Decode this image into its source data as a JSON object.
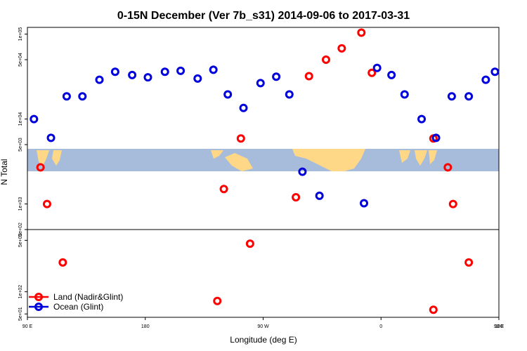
{
  "chart_data": {
    "type": "scatter",
    "title": "0-15N December (Ver 7b_s31)   2014-09-06 to 2017-03-31",
    "xlabel": "Longitude (deg E)",
    "ylabel": "N Total",
    "x_ticks": [
      "90 E",
      "180",
      "90 W",
      "0",
      "90 E",
      "180"
    ],
    "xlim": [
      90,
      450
    ],
    "y_scale": "log",
    "upper_panel": {
      "ylim": [
        500,
        120000
      ],
      "y_ticks": [
        "5e+02",
        "1e+03",
        "5e+03",
        "1e+04",
        "5e+04",
        "1e+05"
      ],
      "background_band": "world map (landmass strip, 0-15N)"
    },
    "lower_panel": {
      "ylim": [
        45,
        700
      ],
      "y_ticks": [
        "5e+01",
        "1e+02",
        "5e+02"
      ]
    },
    "series": [
      {
        "name": "Land (Nadir&Glint)",
        "color": "#ff0000",
        "points": [
          {
            "panel": "upper",
            "x": 100,
            "y": 2700
          },
          {
            "panel": "upper",
            "x": 105,
            "y": 1000
          },
          {
            "panel": "upper",
            "x": 117,
            "y": 250
          },
          {
            "panel": "upper",
            "x": 235,
            "y": 75
          },
          {
            "panel": "upper",
            "x": 240,
            "y": 1500
          },
          {
            "panel": "upper",
            "x": 253,
            "y": 5900
          },
          {
            "panel": "upper",
            "x": 260,
            "y": 450
          },
          {
            "panel": "upper",
            "x": 295,
            "y": 1200
          },
          {
            "panel": "upper",
            "x": 305,
            "y": 32000
          },
          {
            "panel": "upper",
            "x": 318,
            "y": 50000
          },
          {
            "panel": "upper",
            "x": 330,
            "y": 68000
          },
          {
            "panel": "upper",
            "x": 345,
            "y": 104000
          },
          {
            "panel": "upper",
            "x": 353,
            "y": 35000
          },
          {
            "panel": "upper",
            "x": 400,
            "y": 57
          },
          {
            "panel": "upper",
            "x": 400,
            "y": 5900
          },
          {
            "panel": "upper",
            "x": 411,
            "y": 2700
          },
          {
            "panel": "upper",
            "x": 415,
            "y": 1000
          },
          {
            "panel": "upper",
            "x": 427,
            "y": 250
          }
        ]
      },
      {
        "name": "Ocean (Glint)",
        "color": "#0000dd",
        "points": [
          {
            "x": 95,
            "y": 10000
          },
          {
            "x": 108,
            "y": 6000
          },
          {
            "x": 120,
            "y": 18500
          },
          {
            "x": 132,
            "y": 18500
          },
          {
            "x": 145,
            "y": 29000
          },
          {
            "x": 157,
            "y": 36000
          },
          {
            "x": 170,
            "y": 33000
          },
          {
            "x": 182,
            "y": 31000
          },
          {
            "x": 195,
            "y": 36000
          },
          {
            "x": 207,
            "y": 37000
          },
          {
            "x": 220,
            "y": 30000
          },
          {
            "x": 232,
            "y": 38000
          },
          {
            "x": 243,
            "y": 19500
          },
          {
            "x": 255,
            "y": 13500
          },
          {
            "x": 268,
            "y": 26500
          },
          {
            "x": 280,
            "y": 31500
          },
          {
            "x": 290,
            "y": 19500
          },
          {
            "x": 300,
            "y": 2400
          },
          {
            "x": 313,
            "y": 1250
          },
          {
            "x": 347,
            "y": 1020
          },
          {
            "x": 357,
            "y": 40000
          },
          {
            "x": 368,
            "y": 33000
          },
          {
            "x": 378,
            "y": 19500
          },
          {
            "x": 391,
            "y": 10000
          },
          {
            "x": 402,
            "y": 6000
          },
          {
            "x": 414,
            "y": 18500
          },
          {
            "x": 427,
            "y": 18500
          },
          {
            "x": 440,
            "y": 29000
          },
          {
            "x": 447,
            "y": 36000
          }
        ]
      }
    ],
    "legend": {
      "placement": "bottom-left",
      "entries": [
        "Land (Nadir&Glint)",
        "Ocean (Glint)"
      ]
    }
  }
}
